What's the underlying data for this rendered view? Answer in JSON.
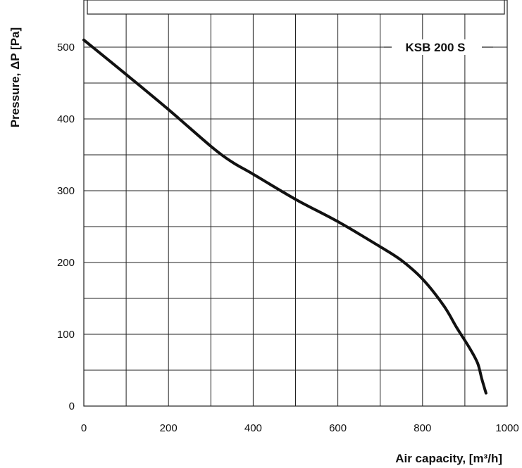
{
  "chart_data": {
    "type": "line",
    "series_label": "KSB 200 S",
    "xlabel": "Air capacity, [m³/h]",
    "ylabel": "Pressure, ΔP [Pa]",
    "xlim": [
      0,
      1000
    ],
    "ylim": [
      0,
      550
    ],
    "x_ticks": [
      "0",
      "200",
      "400",
      "600",
      "800",
      "1000"
    ],
    "y_ticks": [
      "0",
      "100",
      "200",
      "300",
      "400",
      "500"
    ],
    "grid": true,
    "series": [
      {
        "x": [
          0,
          100,
          200,
          300,
          350,
          400,
          500,
          600,
          700,
          750,
          800,
          850,
          880,
          910,
          930,
          940,
          950
        ],
        "y": [
          510,
          462,
          413,
          362,
          340,
          323,
          288,
          257,
          222,
          203,
          177,
          140,
          110,
          82,
          60,
          38,
          18
        ]
      }
    ],
    "colors": {
      "line": "#111111",
      "grid": "#222222",
      "background": "#ffffff"
    }
  }
}
